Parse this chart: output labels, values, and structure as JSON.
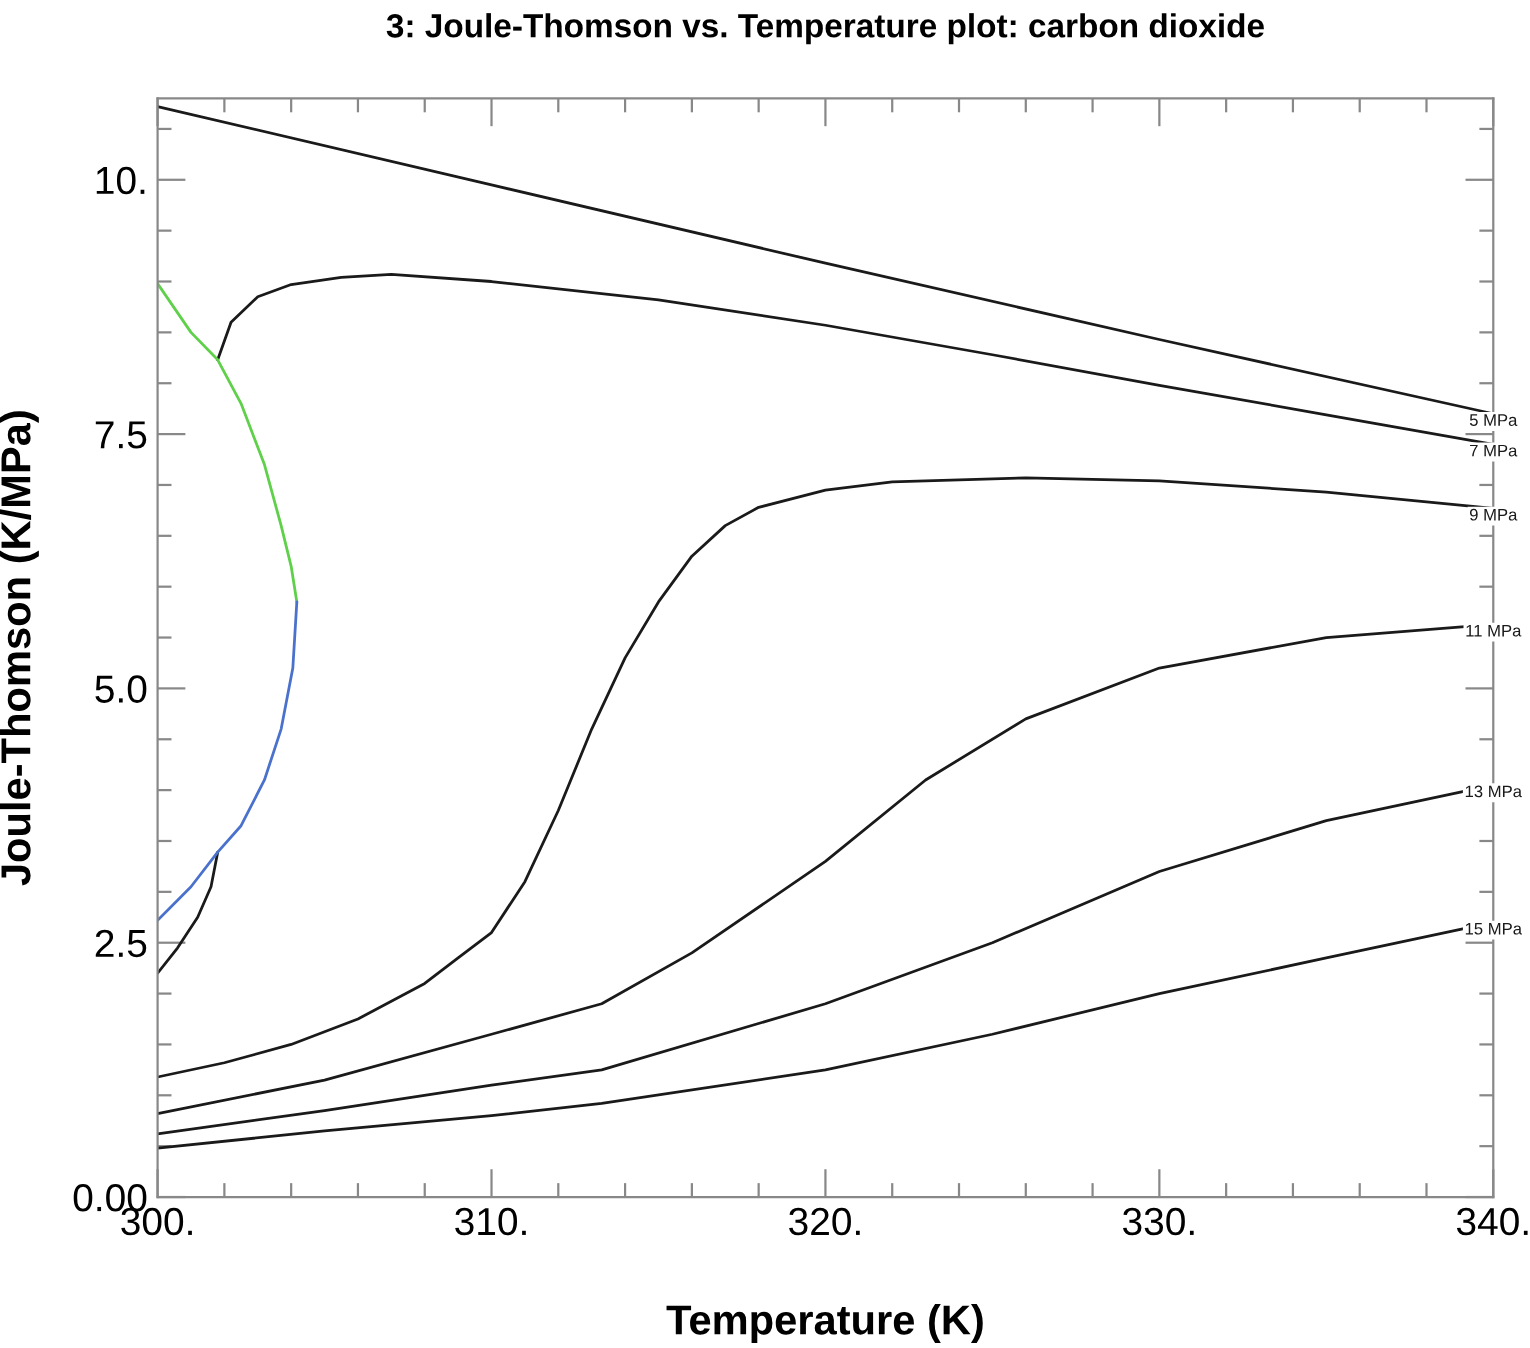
{
  "chart_data": {
    "type": "line",
    "title": "3: Joule-Thomson vs. Temperature plot: carbon dioxide",
    "xlabel": "Temperature (K)",
    "ylabel": "Joule-Thomson (K/MPa)",
    "xlim": [
      300,
      340
    ],
    "ylim": [
      0,
      10.8
    ],
    "xticks": [
      {
        "value": 300,
        "label": "300."
      },
      {
        "value": 302,
        "label": null
      },
      {
        "value": 304,
        "label": null
      },
      {
        "value": 306,
        "label": null
      },
      {
        "value": 308,
        "label": null
      },
      {
        "value": 310,
        "label": "310."
      },
      {
        "value": 312,
        "label": null
      },
      {
        "value": 314,
        "label": null
      },
      {
        "value": 316,
        "label": null
      },
      {
        "value": 318,
        "label": null
      },
      {
        "value": 320,
        "label": "320."
      },
      {
        "value": 322,
        "label": null
      },
      {
        "value": 324,
        "label": null
      },
      {
        "value": 326,
        "label": null
      },
      {
        "value": 328,
        "label": null
      },
      {
        "value": 330,
        "label": "330."
      },
      {
        "value": 332,
        "label": null
      },
      {
        "value": 334,
        "label": null
      },
      {
        "value": 336,
        "label": null
      },
      {
        "value": 338,
        "label": null
      },
      {
        "value": 340,
        "label": "340."
      }
    ],
    "yticks": [
      {
        "value": 0,
        "label": "0.00"
      },
      {
        "value": 0.5,
        "label": null
      },
      {
        "value": 1,
        "label": null
      },
      {
        "value": 1.5,
        "label": null
      },
      {
        "value": 2,
        "label": null
      },
      2.5,
      {
        "value": 3,
        "label": null
      },
      {
        "value": 3.5,
        "label": null
      },
      {
        "value": 4,
        "label": null
      },
      {
        "value": 4.5,
        "label": null
      },
      {
        "value": 5,
        "label": "5.0"
      },
      {
        "value": 5.5,
        "label": null
      },
      {
        "value": 6,
        "label": null
      },
      {
        "value": 6.5,
        "label": null
      },
      {
        "value": 7,
        "label": null
      },
      7.5,
      {
        "value": 8,
        "label": null
      },
      {
        "value": 8.5,
        "label": null
      },
      {
        "value": 9,
        "label": null
      },
      {
        "value": 9.5,
        "label": null
      },
      {
        "value": 10,
        "label": "10."
      },
      {
        "value": 10.5,
        "label": null
      }
    ],
    "grid": false,
    "legend": false,
    "marker": "none",
    "line_style": "solid",
    "series": [
      {
        "name": "5 MPa",
        "color": "#1a1a1a",
        "x": [
          300,
          310,
          320,
          330,
          340
        ],
        "values": [
          10.72,
          9.95,
          9.18,
          8.43,
          7.7
        ]
      },
      {
        "name": "7 MPa",
        "color": "#1a1a1a",
        "x": [
          301.8,
          302.2,
          303,
          304,
          305.5,
          307,
          310,
          315,
          320,
          325,
          330,
          335,
          340
        ],
        "values": [
          8.23,
          8.6,
          8.85,
          8.97,
          9.04,
          9.07,
          9.0,
          8.82,
          8.57,
          8.28,
          7.98,
          7.69,
          7.4
        ]
      },
      {
        "name": "9 MPa",
        "color": "#1a1a1a",
        "x": [
          300,
          302,
          304,
          306,
          308,
          309,
          310,
          311,
          312,
          313,
          314,
          315,
          316,
          317,
          318,
          320,
          322,
          326,
          330,
          335,
          340
        ],
        "values": [
          1.18,
          1.32,
          1.5,
          1.75,
          2.1,
          2.35,
          2.6,
          3.1,
          3.8,
          4.6,
          5.3,
          5.85,
          6.3,
          6.6,
          6.78,
          6.95,
          7.03,
          7.07,
          7.04,
          6.93,
          6.77
        ]
      },
      {
        "name": "11 MPa",
        "color": "#1a1a1a",
        "x": [
          300,
          305,
          310,
          313.3,
          316,
          320,
          323,
          326,
          330,
          335,
          340
        ],
        "values": [
          0.82,
          1.15,
          1.6,
          1.9,
          2.4,
          3.3,
          4.1,
          4.7,
          5.2,
          5.5,
          5.63
        ]
      },
      {
        "name": "13 MPa",
        "color": "#1a1a1a",
        "x": [
          300,
          305,
          310,
          313.3,
          320,
          325,
          330,
          335,
          340
        ],
        "values": [
          0.62,
          0.85,
          1.1,
          1.25,
          1.9,
          2.5,
          3.2,
          3.7,
          4.05
        ]
      },
      {
        "name": "15 MPa",
        "color": "#1a1a1a",
        "x": [
          300,
          305,
          310,
          313.3,
          320,
          325,
          330,
          335,
          340
        ],
        "values": [
          0.48,
          0.65,
          0.8,
          0.92,
          1.25,
          1.6,
          2.0,
          2.35,
          2.7
        ]
      },
      {
        "color": "#1a1a1a",
        "x": [
          300,
          300.6,
          301.2,
          301.6,
          301.8
        ],
        "values": [
          2.2,
          2.45,
          2.75,
          3.05,
          3.39
        ]
      },
      {
        "color": "#5fd04a",
        "x": [
          300,
          301,
          301.8,
          302.5,
          303.2,
          303.7,
          304.0,
          304.17
        ],
        "values": [
          8.98,
          8.5,
          8.23,
          7.8,
          7.2,
          6.6,
          6.2,
          5.85
        ]
      },
      {
        "color": "#4a72cc",
        "x": [
          304.17,
          304.05,
          303.7,
          303.2,
          302.5,
          301.8,
          301,
          300
        ],
        "values": [
          5.85,
          5.2,
          4.6,
          4.1,
          3.65,
          3.39,
          3.05,
          2.72
        ]
      }
    ]
  }
}
